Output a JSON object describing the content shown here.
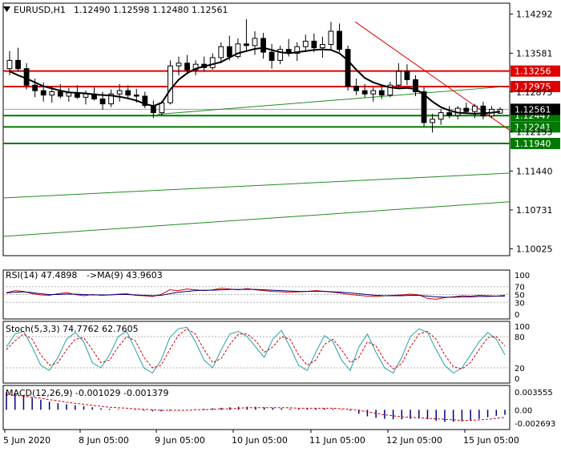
{
  "header": {
    "symbol_label": "EURUSD,H1",
    "ohlc": "1.12490 1.12598 1.12480 1.12561"
  },
  "colors": {
    "background": "#ffffff",
    "frame": "#000000",
    "bull_candle": "#000000",
    "bear_candle": "#000000",
    "ma_line": "#000000",
    "resistance": "#e00000",
    "support": "#007a00",
    "trend_green": "#228b22",
    "trend_red": "#e00000",
    "rsi_line": "#d00000",
    "rsi_ma": "#000080",
    "stoch_main": "#2a9fa8",
    "stoch_signal": "#d00000",
    "macd_hist": "#000080",
    "macd_signal": "#d00000",
    "current_price_bg": "#000000"
  },
  "chart_data": [
    {
      "type": "candlestick",
      "symbol": "EURUSD",
      "timeframe": "H1",
      "ylim": [
        1.099,
        1.1449
      ],
      "y_ticks": [
        "1.14292",
        "1.13581",
        "1.12875",
        "1.12153",
        "1.11440",
        "1.10731",
        "1.10025"
      ],
      "x_tick_labels": [
        "5 Jun 2020",
        "8 Jun 05:00",
        "9 Jun 05:00",
        "10 Jun 05:00",
        "11 Jun 05:00",
        "12 Jun 05:00",
        "15 Jun 05:00"
      ],
      "price_levels": [
        {
          "label": "1.13256",
          "value": 1.13256,
          "kind": "resistance"
        },
        {
          "label": "1.12975",
          "value": 1.12975,
          "kind": "resistance"
        },
        {
          "label": "1.12447",
          "value": 1.12447,
          "kind": "support"
        },
        {
          "label": "1.12241",
          "value": 1.12241,
          "kind": "support"
        },
        {
          "label": "1.11940",
          "value": 1.1194,
          "kind": "support"
        }
      ],
      "current_price": {
        "label": "1.12561",
        "value": 1.12561
      },
      "moving_average_closes": [
        1.1325,
        1.1318,
        1.1312,
        1.1305,
        1.1298,
        1.1294,
        1.129,
        1.1287,
        1.1286,
        1.1285,
        1.1283,
        1.1282,
        1.1281,
        1.1279,
        1.1276,
        1.1272,
        1.1266,
        1.1262,
        1.1268,
        1.1292,
        1.131,
        1.1322,
        1.133,
        1.1334,
        1.1338,
        1.1342,
        1.135,
        1.1358,
        1.1362,
        1.1366,
        1.1368,
        1.1364,
        1.136,
        1.1358,
        1.136,
        1.1362,
        1.1364,
        1.1365,
        1.1364,
        1.1358,
        1.1345,
        1.1328,
        1.1313,
        1.1305,
        1.13,
        1.1296,
        1.1294,
        1.1295,
        1.1293,
        1.1283,
        1.127,
        1.126,
        1.1254,
        1.125,
        1.1249,
        1.1248,
        1.1249,
        1.125,
        1.1252
      ],
      "trend_lines": [
        {
          "name": "green-support-1",
          "from": [
            "9 Jun 05:00",
            1.1247
          ],
          "to": [
            "12 Jun 18:00",
            1.1297
          ]
        },
        {
          "name": "red-downtrend",
          "from": [
            "11 Jun 00:00",
            1.1415
          ],
          "to": [
            "15 Jun 10:00",
            1.1218
          ]
        },
        {
          "name": "green-channel-upper",
          "from": [
            "5 Jun 00:00",
            1.1095
          ],
          "to": [
            "15 Jun 10:00",
            1.114
          ]
        },
        {
          "name": "green-channel-lower",
          "from": [
            "5 Jun 00:00",
            1.1025
          ],
          "to": [
            "15 Jun 10:00",
            1.1088
          ]
        }
      ]
    },
    {
      "type": "line",
      "indicator": "RSI",
      "label": "RSI(14) 47.4898",
      "ma_label": "->MA(9) 43.9603",
      "ylim": [
        0,
        100
      ],
      "levels": [
        30,
        50,
        70
      ],
      "y_ticks": [
        "100",
        "70",
        "50",
        "30",
        "0"
      ],
      "series": [
        {
          "values": [
            55,
            60,
            58,
            52,
            49,
            48,
            52,
            55,
            50,
            47,
            50,
            48,
            49,
            51,
            52,
            48,
            47,
            45,
            50,
            62,
            60,
            64,
            62,
            60,
            62,
            66,
            64,
            62,
            65,
            62,
            60,
            58,
            57,
            56,
            57,
            58,
            60,
            58,
            56,
            53,
            50,
            48,
            46,
            45,
            47,
            48,
            49,
            51,
            49,
            40,
            38,
            42,
            44,
            47,
            46,
            48,
            47,
            46,
            48
          ]
        },
        {
          "values": [
            54,
            56,
            57,
            55,
            52,
            50,
            50,
            51,
            51,
            50,
            49,
            49,
            49,
            50,
            50,
            49,
            48,
            47,
            48,
            52,
            56,
            58,
            60,
            61,
            61,
            62,
            63,
            63,
            63,
            63,
            62,
            61,
            60,
            59,
            58,
            58,
            58,
            58,
            57,
            56,
            54,
            52,
            50,
            48,
            47,
            47,
            47,
            48,
            48,
            46,
            44,
            43,
            43,
            44,
            44,
            45,
            45,
            46,
            46
          ]
        }
      ]
    },
    {
      "type": "line",
      "indicator": "Stochastic",
      "label": "Stoch(5,3,3) 74.7762 62.7605",
      "ylim": [
        0,
        100
      ],
      "levels": [
        20,
        80
      ],
      "y_ticks": [
        "100",
        "80",
        "20",
        "0"
      ],
      "series": [
        {
          "values": [
            60,
            85,
            90,
            60,
            25,
            15,
            40,
            75,
            88,
            70,
            30,
            20,
            45,
            80,
            90,
            55,
            20,
            10,
            35,
            78,
            95,
            98,
            70,
            35,
            20,
            55,
            85,
            90,
            80,
            60,
            40,
            75,
            92,
            60,
            25,
            15,
            50,
            82,
            70,
            35,
            15,
            60,
            85,
            50,
            20,
            10,
            40,
            80,
            95,
            88,
            55,
            25,
            10,
            20,
            45,
            70,
            88,
            75,
            45
          ]
        },
        {
          "values": [
            55,
            72,
            85,
            75,
            45,
            25,
            30,
            55,
            75,
            78,
            55,
            30,
            35,
            60,
            80,
            72,
            40,
            20,
            25,
            55,
            82,
            95,
            85,
            55,
            30,
            38,
            65,
            85,
            85,
            72,
            50,
            60,
            80,
            75,
            45,
            25,
            35,
            65,
            75,
            55,
            30,
            40,
            70,
            62,
            35,
            18,
            28,
            60,
            85,
            90,
            75,
            45,
            22,
            18,
            30,
            55,
            78,
            80,
            62
          ]
        }
      ]
    },
    {
      "type": "bar",
      "indicator": "MACD",
      "label": "MACD(12,26,9) -0.001029 -0.001379",
      "ylim": [
        -0.0033,
        0.0042
      ],
      "y_ticks": [
        "0.003555",
        "0.00",
        "-0.002693"
      ],
      "histogram": [
        0.0035,
        0.0032,
        0.0028,
        0.0024,
        0.002,
        0.0016,
        0.0013,
        0.0011,
        0.0009,
        0.0007,
        0.0005,
        0.0003,
        0.0002,
        0.0001,
        0.0,
        -0.0001,
        -0.0002,
        -0.0003,
        -0.0003,
        -0.0002,
        -0.0001,
        0.0,
        0.0001,
        0.0002,
        0.0003,
        0.0004,
        0.0005,
        0.0006,
        0.0006,
        0.0006,
        0.0005,
        0.0004,
        0.0003,
        0.0002,
        0.0002,
        0.0002,
        0.0003,
        0.0003,
        0.0002,
        0.0001,
        -0.0002,
        -0.0008,
        -0.0013,
        -0.0016,
        -0.0018,
        -0.0019,
        -0.0019,
        -0.0018,
        -0.0017,
        -0.0019,
        -0.0022,
        -0.0024,
        -0.0024,
        -0.0023,
        -0.0021,
        -0.0018,
        -0.0015,
        -0.0012,
        -0.001
      ],
      "signal": [
        0.003,
        0.0029,
        0.0027,
        0.0025,
        0.0023,
        0.002,
        0.0018,
        0.0015,
        0.0013,
        0.0011,
        0.0009,
        0.0007,
        0.0005,
        0.0004,
        0.0003,
        0.0002,
        0.0001,
        0.0,
        -0.0001,
        -0.0001,
        -0.0001,
        -0.0001,
        0.0,
        0.0,
        0.0001,
        0.0002,
        0.0002,
        0.0003,
        0.0004,
        0.0004,
        0.0004,
        0.0004,
        0.0004,
        0.0004,
        0.0003,
        0.0003,
        0.0003,
        0.0003,
        0.0003,
        0.0002,
        0.0001,
        -0.0001,
        -0.0004,
        -0.0007,
        -0.001,
        -0.0012,
        -0.0014,
        -0.0015,
        -0.0016,
        -0.0017,
        -0.0018,
        -0.0019,
        -0.002,
        -0.0021,
        -0.0021,
        -0.002,
        -0.0019,
        -0.0017,
        -0.0015
      ]
    }
  ],
  "candles": [
    [
      1.133,
      1.1362,
      1.1318,
      1.1345
    ],
    [
      1.1345,
      1.1368,
      1.1325,
      1.133
    ],
    [
      1.133,
      1.134,
      1.1292,
      1.13
    ],
    [
      1.13,
      1.1312,
      1.1278,
      1.129
    ],
    [
      1.129,
      1.1305,
      1.127,
      1.1282
    ],
    [
      1.1282,
      1.1298,
      1.1268,
      1.1288
    ],
    [
      1.1288,
      1.1302,
      1.1276,
      1.128
    ],
    [
      1.128,
      1.1295,
      1.127,
      1.1286
    ],
    [
      1.1286,
      1.13,
      1.1275,
      1.1278
    ],
    [
      1.1278,
      1.129,
      1.1265,
      1.1284
    ],
    [
      1.1284,
      1.1296,
      1.1272,
      1.1275
    ],
    [
      1.1275,
      1.1288,
      1.1255,
      1.1266
    ],
    [
      1.1266,
      1.1292,
      1.126,
      1.1284
    ],
    [
      1.1284,
      1.1302,
      1.127,
      1.129
    ],
    [
      1.129,
      1.13,
      1.1274,
      1.1282
    ],
    [
      1.1282,
      1.1293,
      1.1268,
      1.128
    ],
    [
      1.128,
      1.1288,
      1.1258,
      1.1263
    ],
    [
      1.1263,
      1.1272,
      1.124,
      1.125
    ],
    [
      1.125,
      1.1272,
      1.1245,
      1.1268
    ],
    [
      1.1268,
      1.1345,
      1.1265,
      1.1335
    ],
    [
      1.1335,
      1.1352,
      1.1318,
      1.134
    ],
    [
      1.134,
      1.1355,
      1.132,
      1.1328
    ],
    [
      1.1328,
      1.1345,
      1.1318,
      1.1338
    ],
    [
      1.1338,
      1.1352,
      1.1325,
      1.1332
    ],
    [
      1.1332,
      1.1358,
      1.1328,
      1.135
    ],
    [
      1.135,
      1.1378,
      1.134,
      1.137
    ],
    [
      1.137,
      1.139,
      1.1345,
      1.1352
    ],
    [
      1.1352,
      1.1385,
      1.1348,
      1.1375
    ],
    [
      1.1375,
      1.142,
      1.136,
      1.1372
    ],
    [
      1.1372,
      1.1398,
      1.1355,
      1.1385
    ],
    [
      1.1385,
      1.1395,
      1.1348,
      1.136
    ],
    [
      1.136,
      1.1375,
      1.133,
      1.1345
    ],
    [
      1.1345,
      1.1372,
      1.1338,
      1.1365
    ],
    [
      1.1365,
      1.1384,
      1.1352,
      1.1358
    ],
    [
      1.1358,
      1.1378,
      1.1344,
      1.137
    ],
    [
      1.137,
      1.1392,
      1.136,
      1.138
    ],
    [
      1.138,
      1.1394,
      1.136,
      1.1368
    ],
    [
      1.1368,
      1.1388,
      1.135,
      1.1374
    ],
    [
      1.1374,
      1.1415,
      1.1365,
      1.1398
    ],
    [
      1.1398,
      1.1412,
      1.136,
      1.1365
    ],
    [
      1.1365,
      1.1372,
      1.129,
      1.1298
    ],
    [
      1.1298,
      1.1312,
      1.1282,
      1.129
    ],
    [
      1.129,
      1.1302,
      1.1278,
      1.1284
    ],
    [
      1.1284,
      1.1296,
      1.127,
      1.129
    ],
    [
      1.129,
      1.13,
      1.1275,
      1.1282
    ],
    [
      1.1282,
      1.1306,
      1.1278,
      1.13
    ],
    [
      1.13,
      1.134,
      1.1294,
      1.1325
    ],
    [
      1.1325,
      1.1338,
      1.13,
      1.131
    ],
    [
      1.131,
      1.1318,
      1.128,
      1.1288
    ],
    [
      1.1288,
      1.1296,
      1.1225,
      1.1232
    ],
    [
      1.1232,
      1.1248,
      1.1214,
      1.1238
    ],
    [
      1.1238,
      1.1256,
      1.1228,
      1.125
    ],
    [
      1.125,
      1.1262,
      1.124,
      1.1245
    ],
    [
      1.1245,
      1.1262,
      1.1238,
      1.1258
    ],
    [
      1.1258,
      1.1268,
      1.1248,
      1.1252
    ],
    [
      1.1252,
      1.1266,
      1.124,
      1.1262
    ],
    [
      1.1262,
      1.127,
      1.1238,
      1.1244
    ],
    [
      1.1244,
      1.1262,
      1.124,
      1.1256
    ],
    [
      1.1249,
      1.126,
      1.1248,
      1.1256
    ]
  ]
}
